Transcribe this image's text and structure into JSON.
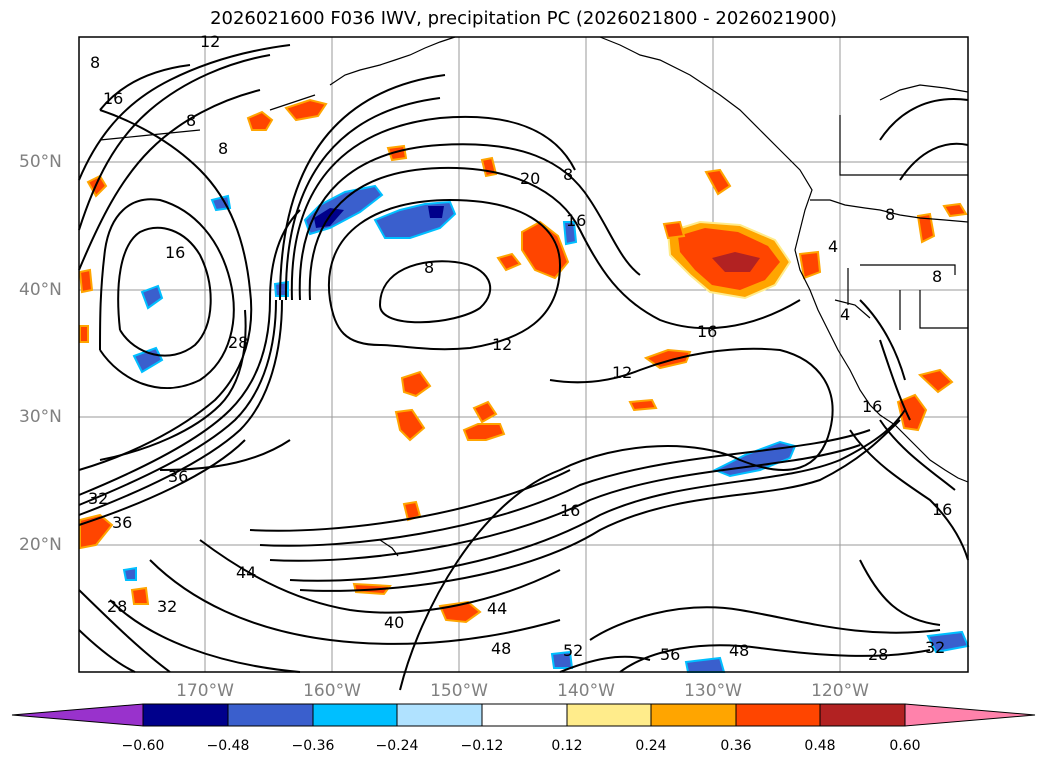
{
  "title": "2026021600 F036 IWV, precipitation PC (2026021800 - 2026021900)",
  "lat_labels": [
    "50°N",
    "40°N",
    "30°N",
    "20°N"
  ],
  "lon_labels": [
    "170°W",
    "160°W",
    "150°W",
    "140°W",
    "130°W",
    "120°W"
  ],
  "colorbar": {
    "colors": [
      "#9932cc",
      "#00008b",
      "#3a5fcd",
      "#00bfff",
      "#b0e2ff",
      "#ffffff",
      "#ffec8b",
      "#ffa500",
      "#ff4500",
      "#b22222",
      "#ff82ab"
    ],
    "tick_labels": [
      "−0.60",
      "−0.48",
      "−0.36",
      "−0.24",
      "−0.12",
      "0.12",
      "0.24",
      "0.36",
      "0.48",
      "0.60"
    ]
  },
  "contour_labels": [
    "12",
    "8",
    "16",
    "8",
    "8",
    "20",
    "8",
    "16",
    "8",
    "16",
    "12",
    "16",
    "12",
    "28",
    "36",
    "32",
    "36",
    "44",
    "28",
    "32",
    "40",
    "44",
    "48",
    "52",
    "56",
    "48",
    "28",
    "32",
    "16",
    "16",
    "4",
    "8",
    "16",
    "8",
    "4"
  ]
}
